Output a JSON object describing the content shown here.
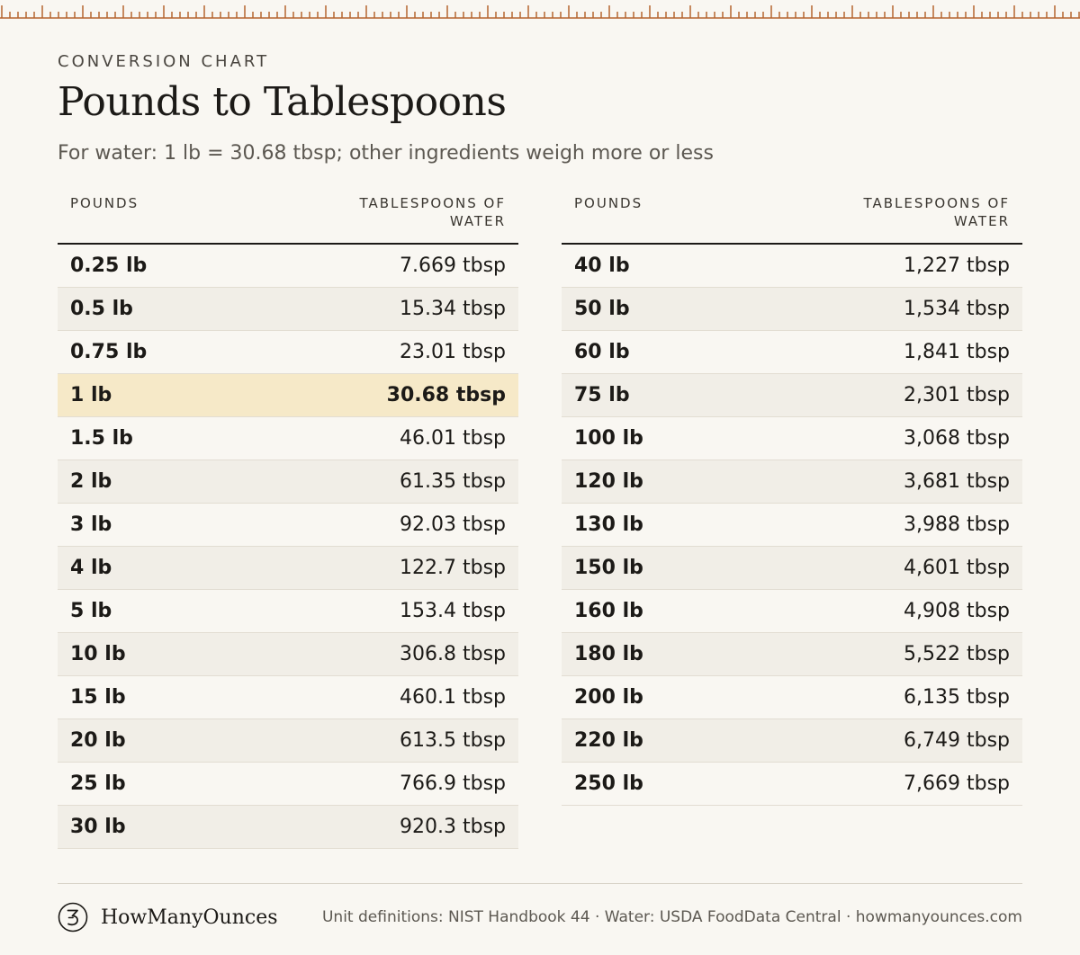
{
  "header": {
    "eyebrow": "CONVERSION CHART",
    "title": "Pounds to Tablespoons",
    "subtitle": "For water: 1 lb = 30.68 tbsp; other ingredients weigh more or less"
  },
  "columns": {
    "pounds": "POUNDS",
    "tbsp_line1": "TABLESPOONS OF",
    "tbsp_line2": "WATER"
  },
  "left_rows": [
    {
      "lb": "0.25 lb",
      "tbsp": "7.669 tbsp"
    },
    {
      "lb": "0.5 lb",
      "tbsp": "15.34 tbsp"
    },
    {
      "lb": "0.75 lb",
      "tbsp": "23.01 tbsp"
    },
    {
      "lb": "1 lb",
      "tbsp": "30.68 tbsp"
    },
    {
      "lb": "1.5 lb",
      "tbsp": "46.01 tbsp"
    },
    {
      "lb": "2 lb",
      "tbsp": "61.35 tbsp"
    },
    {
      "lb": "3 lb",
      "tbsp": "92.03 tbsp"
    },
    {
      "lb": "4 lb",
      "tbsp": "122.7 tbsp"
    },
    {
      "lb": "5 lb",
      "tbsp": "153.4 tbsp"
    },
    {
      "lb": "10 lb",
      "tbsp": "306.8 tbsp"
    },
    {
      "lb": "15 lb",
      "tbsp": "460.1 tbsp"
    },
    {
      "lb": "20 lb",
      "tbsp": "613.5 tbsp"
    },
    {
      "lb": "25 lb",
      "tbsp": "766.9 tbsp"
    },
    {
      "lb": "30 lb",
      "tbsp": "920.3 tbsp"
    }
  ],
  "right_rows": [
    {
      "lb": "40 lb",
      "tbsp": "1,227 tbsp"
    },
    {
      "lb": "50 lb",
      "tbsp": "1,534 tbsp"
    },
    {
      "lb": "60 lb",
      "tbsp": "1,841 tbsp"
    },
    {
      "lb": "75 lb",
      "tbsp": "2,301 tbsp"
    },
    {
      "lb": "100 lb",
      "tbsp": "3,068 tbsp"
    },
    {
      "lb": "120 lb",
      "tbsp": "3,681 tbsp"
    },
    {
      "lb": "130 lb",
      "tbsp": "3,988 tbsp"
    },
    {
      "lb": "150 lb",
      "tbsp": "4,601 tbsp"
    },
    {
      "lb": "160 lb",
      "tbsp": "4,908 tbsp"
    },
    {
      "lb": "180 lb",
      "tbsp": "5,522 tbsp"
    },
    {
      "lb": "200 lb",
      "tbsp": "6,135 tbsp"
    },
    {
      "lb": "220 lb",
      "tbsp": "6,749 tbsp"
    },
    {
      "lb": "250 lb",
      "tbsp": "7,669 tbsp"
    }
  ],
  "highlight_row": "1 lb",
  "footer": {
    "brand_icon": "ounce-3-logo-icon",
    "brand_name": "HowManyOunces",
    "source": "Unit definitions: NIST Handbook 44 · Water: USDA FoodData Central · howmanyounces.com"
  },
  "colors": {
    "background": "#f9f7f2",
    "ruler": "#b5652f",
    "stripe": "#f1eee7",
    "highlight": "#f6e9c8"
  },
  "icons": {
    "ruler": "ruler-ticks-icon"
  }
}
